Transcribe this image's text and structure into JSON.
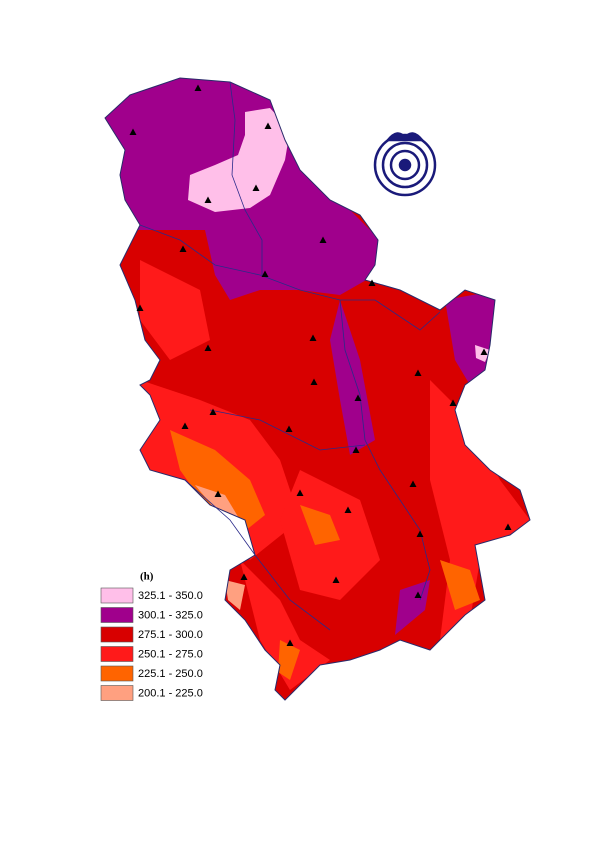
{
  "legend": {
    "title": "(h)",
    "items": [
      {
        "label": "325.1 - 350.0",
        "color": "#ffbfe9"
      },
      {
        "label": "300.1 - 325.0",
        "color": "#a0008c"
      },
      {
        "label": "275.1 - 300.0",
        "color": "#d80000"
      },
      {
        "label": "250.1 - 275.0",
        "color": "#ff1a1a"
      },
      {
        "label": "225.1 - 250.0",
        "color": "#ff6400"
      },
      {
        "label": "200.1 - 225.0",
        "color": "#ffa080"
      }
    ]
  }
}
